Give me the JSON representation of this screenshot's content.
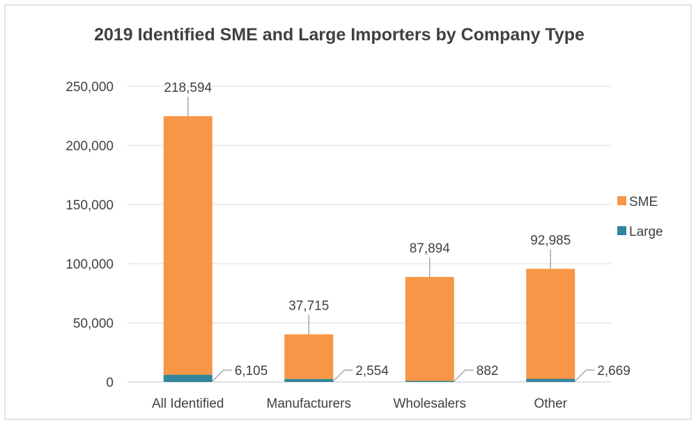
{
  "chart_data": {
    "type": "bar",
    "stacked": true,
    "title": "2019 Identified SME and Large Importers by Company Type",
    "xlabel": "",
    "ylabel": "",
    "ylim": [
      0,
      250000
    ],
    "yticks": [
      0,
      50000,
      100000,
      150000,
      200000,
      250000
    ],
    "ytick_labels": [
      "0",
      "50,000",
      "100,000",
      "150,000",
      "200,000",
      "250,000"
    ],
    "categories": [
      "All Identified",
      "Manufacturers",
      "Wholesalers",
      "Other"
    ],
    "series": [
      {
        "name": "Large",
        "color": "#31859C",
        "values": [
          6105,
          2554,
          882,
          2669
        ],
        "labels": [
          "6,105",
          "2,554",
          "882",
          "2,669"
        ]
      },
      {
        "name": "SME",
        "color": "#F79646",
        "values": [
          218594,
          37715,
          87894,
          92985
        ],
        "labels": [
          "218,594",
          "37,715",
          "87,894",
          "92,985"
        ]
      }
    ],
    "legend": {
      "position": "right",
      "entries": [
        "SME",
        "Large"
      ]
    },
    "grid": true,
    "colors": {
      "grid": "#D9D9D9",
      "axis": "#D9D9D9",
      "leader": "#A6A6A6",
      "text": "#404040",
      "border": "#D9D9D9"
    }
  }
}
